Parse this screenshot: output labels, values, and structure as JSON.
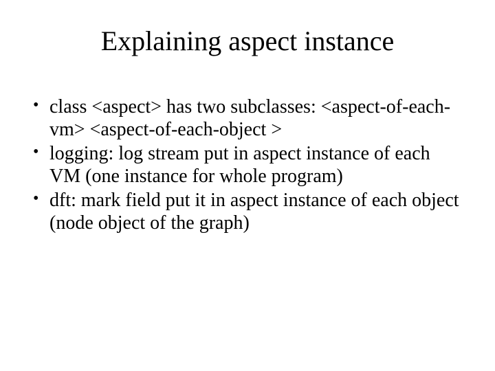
{
  "slide": {
    "title": "Explaining aspect instance",
    "title_fontsize": 40,
    "body_fontsize": 28,
    "background_color": "#ffffff",
    "text_color": "#000000",
    "font_family": "Times New Roman",
    "bullets": [
      "class <aspect> has two subclasses: <aspect-of-each-vm> <aspect-of-each-object >",
      "logging: log stream put in aspect instance of each VM (one instance for whole program)",
      "dft: mark field put it in aspect instance of each object (node object of the graph)"
    ]
  }
}
